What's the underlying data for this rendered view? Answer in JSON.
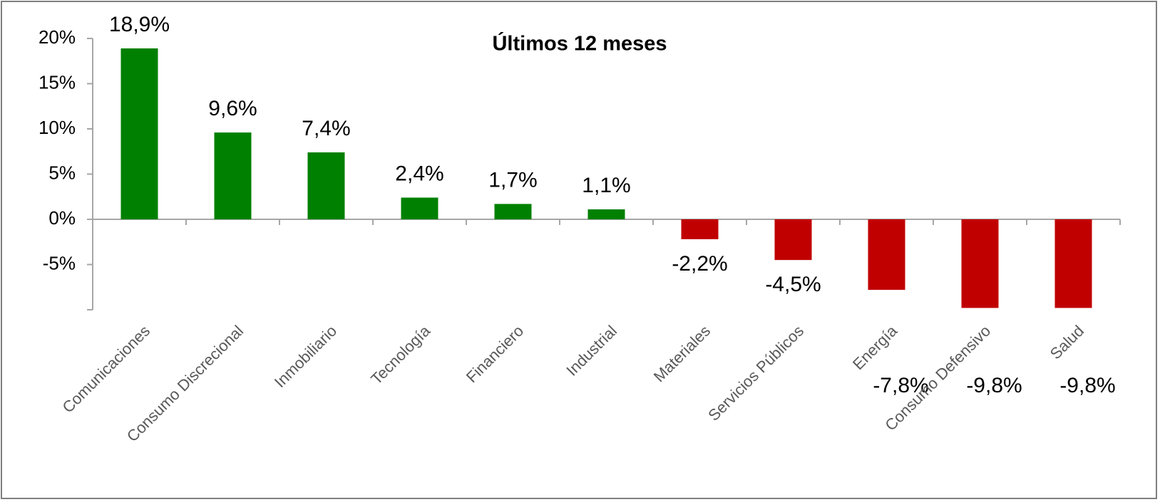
{
  "chart_data": {
    "type": "bar",
    "title": "Últimos 12 meses",
    "categories": [
      "Comunicaciones",
      "Consumo Discrecional",
      "Inmobiliario",
      "Tecnología",
      "Financiero",
      "Industrial",
      "Materiales",
      "Servicios Públicos",
      "Energía",
      "Consumo Defensivo",
      "Salud"
    ],
    "values": [
      18.9,
      9.6,
      7.4,
      2.4,
      1.7,
      1.1,
      -2.2,
      -4.5,
      -7.8,
      -9.8,
      -9.8
    ],
    "value_labels": [
      "18,9%",
      "9,6%",
      "7,4%",
      "2,4%",
      "1,7%",
      "1,1%",
      "-2,2%",
      "-4,5%",
      "-7,8%",
      "-9,8%",
      "-9,8%"
    ],
    "positive_color": "#008000",
    "negative_color": "#c00000",
    "ylim": [
      -10,
      20
    ],
    "yticks": [
      {
        "value": 20,
        "label": "20%"
      },
      {
        "value": 15,
        "label": "15%"
      },
      {
        "value": 10,
        "label": "10%"
      },
      {
        "value": 5,
        "label": "5%"
      },
      {
        "value": 0,
        "label": "0%"
      },
      {
        "value": -5,
        "label": "-5%"
      }
    ],
    "grid": false
  }
}
